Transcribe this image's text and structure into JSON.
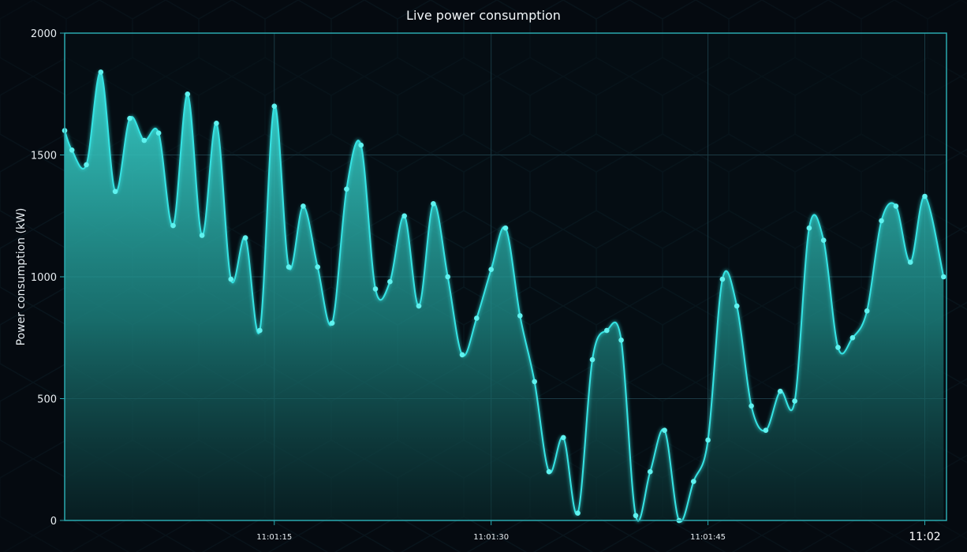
{
  "chart_data": {
    "type": "area",
    "title": "Live power consumption",
    "xlabel": "",
    "ylabel": "Power consumption (kW)",
    "ylim": [
      0,
      2000
    ],
    "xlim": [
      "11:01:00.5",
      "11:02:01.5"
    ],
    "y_ticks": [
      0,
      500,
      1000,
      1500,
      2000
    ],
    "x_ticks": [
      {
        "t": "11:01:15",
        "label": "11:01:15",
        "major": false
      },
      {
        "t": "11:01:30",
        "label": "11:01:30",
        "major": false
      },
      {
        "t": "11:01:45",
        "label": "11:01:45",
        "major": false
      },
      {
        "t": "11:02:00",
        "label": "11:02",
        "major": true
      }
    ],
    "grid": true,
    "legend": "none",
    "series": [
      {
        "color": "#36e3e3",
        "points": [
          [
            "11:01:00.5",
            1600
          ],
          [
            "11:01:01",
            1520
          ],
          [
            "11:01:02",
            1460
          ],
          [
            "11:01:03",
            1840
          ],
          [
            "11:01:04",
            1350
          ],
          [
            "11:01:05",
            1650
          ],
          [
            "11:01:06",
            1560
          ],
          [
            "11:01:07",
            1590
          ],
          [
            "11:01:08",
            1210
          ],
          [
            "11:01:09",
            1750
          ],
          [
            "11:01:10",
            1170
          ],
          [
            "11:01:11",
            1630
          ],
          [
            "11:01:12",
            990
          ],
          [
            "11:01:13",
            1160
          ],
          [
            "11:01:14",
            780
          ],
          [
            "11:01:15",
            1700
          ],
          [
            "11:01:16",
            1040
          ],
          [
            "11:01:17",
            1290
          ],
          [
            "11:01:18",
            1040
          ],
          [
            "11:01:19",
            810
          ],
          [
            "11:01:20",
            1360
          ],
          [
            "11:01:21",
            1540
          ],
          [
            "11:01:22",
            950
          ],
          [
            "11:01:23",
            980
          ],
          [
            "11:01:24",
            1250
          ],
          [
            "11:01:25",
            880
          ],
          [
            "11:01:26",
            1300
          ],
          [
            "11:01:27",
            1000
          ],
          [
            "11:01:28",
            680
          ],
          [
            "11:01:29",
            830
          ],
          [
            "11:01:30",
            1030
          ],
          [
            "11:01:31",
            1200
          ],
          [
            "11:01:32",
            840
          ],
          [
            "11:01:33",
            570
          ],
          [
            "11:01:34",
            200
          ],
          [
            "11:01:35",
            340
          ],
          [
            "11:01:36",
            30
          ],
          [
            "11:01:37",
            660
          ],
          [
            "11:01:38",
            780
          ],
          [
            "11:01:39",
            740
          ],
          [
            "11:01:40",
            20
          ],
          [
            "11:01:41",
            200
          ],
          [
            "11:01:42",
            370
          ],
          [
            "11:01:43",
            0
          ],
          [
            "11:01:44",
            160
          ],
          [
            "11:01:45",
            330
          ],
          [
            "11:01:46",
            990
          ],
          [
            "11:01:47",
            880
          ],
          [
            "11:01:48",
            470
          ],
          [
            "11:01:49",
            370
          ],
          [
            "11:01:50",
            530
          ],
          [
            "11:01:51",
            490
          ],
          [
            "11:01:52",
            1200
          ],
          [
            "11:01:53",
            1150
          ],
          [
            "11:01:54",
            710
          ],
          [
            "11:01:55",
            750
          ],
          [
            "11:01:56",
            860
          ],
          [
            "11:01:57",
            1230
          ],
          [
            "11:01:58",
            1290
          ],
          [
            "11:01:59",
            1060
          ],
          [
            "11:02:00",
            1330
          ],
          [
            "11:02:01.3",
            1000
          ]
        ]
      }
    ]
  }
}
